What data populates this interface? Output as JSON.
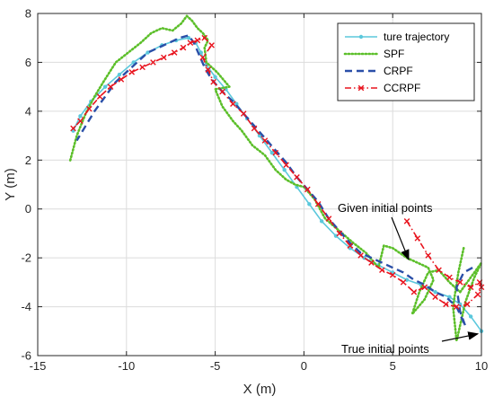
{
  "chart_data": {
    "type": "line",
    "title": "",
    "xlabel": "X (m)",
    "ylabel": "Y (m)",
    "xlim": [
      -15,
      10
    ],
    "ylim": [
      -6,
      8
    ],
    "xticks": [
      -15,
      -10,
      -5,
      0,
      5,
      10
    ],
    "yticks": [
      -6,
      -4,
      -2,
      0,
      2,
      4,
      6,
      8
    ],
    "xtick_labels": [
      "-15",
      "-10",
      "-5",
      "0",
      "5",
      "10"
    ],
    "ytick_labels": [
      "-6",
      "-4",
      "-2",
      "0",
      "2",
      "4",
      "6",
      "8"
    ],
    "grid": true,
    "legend_position": "top-right",
    "series": [
      {
        "name": "ture trajectory",
        "color": "#5bc8dc",
        "style": "solid",
        "marker": "dot",
        "x": [
          10,
          9.4,
          8.8,
          8.2,
          7.4,
          6.6,
          5.8,
          5.0,
          4.2,
          3.4,
          2.6,
          1.8,
          1.0,
          0.3,
          -0.4,
          -1.1,
          -1.8,
          -2.5,
          -3.2,
          -3.8,
          -4.4,
          -5.0,
          -5.5,
          -5.8,
          -6.1,
          -6.5,
          -7.2,
          -8.0,
          -8.8,
          -9.6,
          -10.4,
          -11.2,
          -12.0,
          -12.6,
          -13.0
        ],
        "y": [
          -5.0,
          -4.4,
          -3.9,
          -3.6,
          -3.4,
          -3.1,
          -2.9,
          -2.6,
          -2.3,
          -2.0,
          -1.6,
          -1.1,
          -0.5,
          0.2,
          0.9,
          1.6,
          2.3,
          3.0,
          3.7,
          4.3,
          4.9,
          5.4,
          5.9,
          6.4,
          6.8,
          7.0,
          6.9,
          6.7,
          6.4,
          6.0,
          5.5,
          5.0,
          4.4,
          3.8,
          3.2
        ]
      },
      {
        "name": "SPF",
        "color": "#5cbf2a",
        "style": "dotted",
        "marker": "none",
        "x": [
          9.0,
          8.7,
          8.4,
          8.6,
          9.1,
          9.6,
          10.0,
          9.4,
          8.8,
          8.2,
          7.6,
          7.0,
          6.5,
          6.1,
          6.8,
          7.3,
          7.0,
          6.4,
          5.8,
          5.0,
          4.5,
          4.2,
          3.5,
          2.8,
          2.0,
          1.2,
          0.6,
          0.0,
          -0.5,
          -1.0,
          -1.6,
          -2.2,
          -2.9,
          -3.5,
          -4.0,
          -4.6,
          -5.0,
          -4.2,
          -4.9,
          -5.5,
          -5.6,
          -5.4,
          -5.7,
          -6.0,
          -6.3,
          -6.6,
          -6.9,
          -7.4,
          -8.0,
          -8.6,
          -9.2,
          -9.9,
          -10.6,
          -11.3,
          -11.8,
          -12.3,
          -12.8,
          -13.2
        ],
        "y": [
          -1.6,
          -2.6,
          -4.0,
          -5.4,
          -3.8,
          -2.8,
          -2.2,
          -2.8,
          -3.4,
          -3.0,
          -2.5,
          -2.6,
          -3.4,
          -4.3,
          -3.7,
          -2.9,
          -2.4,
          -2.2,
          -2.0,
          -1.6,
          -1.5,
          -2.4,
          -1.8,
          -1.4,
          -0.9,
          -0.4,
          0.4,
          0.9,
          1.0,
          1.2,
          1.6,
          2.2,
          2.6,
          3.2,
          3.6,
          4.2,
          4.9,
          5.0,
          5.6,
          6.0,
          6.6,
          6.9,
          7.2,
          7.4,
          7.7,
          7.9,
          7.6,
          7.3,
          7.4,
          7.2,
          6.8,
          6.4,
          6.0,
          5.2,
          4.6,
          3.9,
          3.0,
          1.9
        ]
      },
      {
        "name": "CRPF",
        "color": "#2a4fa8",
        "style": "dashed",
        "marker": "none",
        "x": [
          9.5,
          9.0,
          8.6,
          8.8,
          9.1,
          8.6,
          8.0,
          7.4,
          6.8,
          6.2,
          5.6,
          5.0,
          4.4,
          3.8,
          3.2,
          2.6,
          2.0,
          1.4,
          0.8,
          0.2,
          -0.4,
          -1.0,
          -1.6,
          -2.2,
          -2.8,
          -3.4,
          -4.0,
          -4.6,
          -5.2,
          -5.6,
          -5.9,
          -6.2,
          -6.5,
          -7.0,
          -7.6,
          -8.2,
          -8.8,
          -9.4,
          -10.0,
          -10.6,
          -11.2,
          -11.8,
          -12.3,
          -12.8
        ],
        "y": [
          -2.4,
          -2.6,
          -3.2,
          -4.2,
          -4.8,
          -4.0,
          -3.6,
          -3.4,
          -3.1,
          -2.9,
          -2.6,
          -2.4,
          -2.2,
          -2.0,
          -1.8,
          -1.4,
          -0.9,
          -0.4,
          0.3,
          0.8,
          1.3,
          1.9,
          2.4,
          2.9,
          3.4,
          3.9,
          4.4,
          4.8,
          5.3,
          5.8,
          6.3,
          6.8,
          7.1,
          7.0,
          6.8,
          6.6,
          6.4,
          6.0,
          5.6,
          5.2,
          4.6,
          4.0,
          3.4,
          2.8
        ]
      },
      {
        "name": "CCRPF",
        "color": "#e8141e",
        "style": "dashdot",
        "marker": "x",
        "x": [
          5.8,
          6.4,
          7.0,
          7.6,
          8.2,
          8.8,
          9.4,
          9.9,
          10.0,
          9.8,
          9.2,
          8.6,
          8.0,
          7.4,
          6.8,
          6.2,
          5.6,
          5.0,
          4.4,
          3.8,
          3.2,
          2.6,
          2.0,
          1.4,
          0.8,
          0.2,
          -0.4,
          -1.0,
          -1.6,
          -2.2,
          -2.8,
          -3.4,
          -4.0,
          -4.6,
          -5.1,
          -5.4,
          -5.7,
          -5.2,
          -5.6,
          -6.0,
          -6.4,
          -6.8,
          -7.3,
          -7.9,
          -8.5,
          -9.1,
          -9.7,
          -10.3,
          -10.9,
          -11.5,
          -12.1,
          -12.6,
          -13.0
        ],
        "y": [
          -0.5,
          -1.2,
          -1.9,
          -2.5,
          -2.8,
          -3.0,
          -3.2,
          -3.0,
          -3.2,
          -3.5,
          -3.9,
          -4.0,
          -3.9,
          -3.6,
          -3.2,
          -3.4,
          -3.0,
          -2.7,
          -2.5,
          -2.2,
          -1.9,
          -1.5,
          -1.0,
          -0.4,
          0.2,
          0.8,
          1.3,
          1.8,
          2.3,
          2.8,
          3.3,
          3.9,
          4.3,
          4.8,
          5.2,
          5.7,
          6.2,
          6.7,
          7.0,
          6.9,
          6.8,
          6.6,
          6.4,
          6.2,
          6.0,
          5.8,
          5.6,
          5.3,
          5.0,
          4.6,
          4.1,
          3.6,
          3.3
        ]
      }
    ],
    "annotations": [
      {
        "text": "Given initial points",
        "x": 5.8,
        "y": -0.6
      },
      {
        "text": "True initial points",
        "x": 10,
        "y": -5.0
      }
    ]
  }
}
